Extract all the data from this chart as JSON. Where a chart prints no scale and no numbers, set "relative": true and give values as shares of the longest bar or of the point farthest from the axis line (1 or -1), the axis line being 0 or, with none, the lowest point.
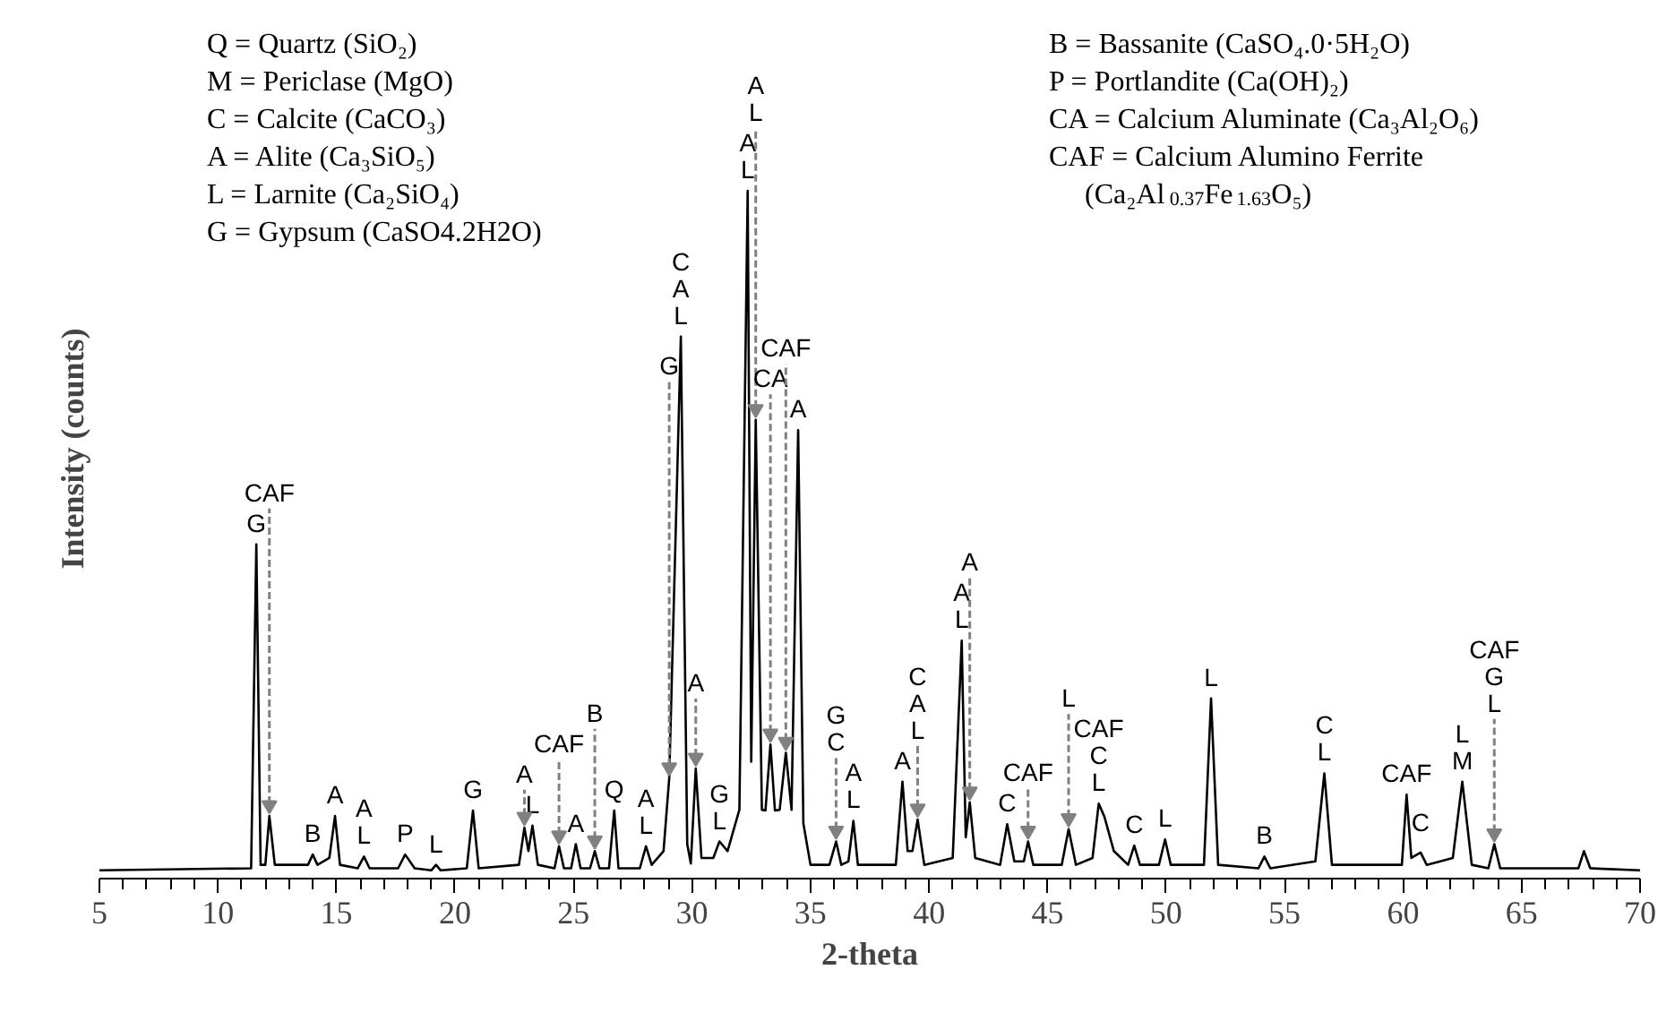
{
  "chart_data": {
    "type": "line",
    "relative": true,
    "xlabel": "2-theta",
    "ylabel": "Intensity (counts)",
    "xlim": [
      5,
      70
    ],
    "xticks": [
      5,
      10,
      15,
      20,
      25,
      30,
      35,
      40,
      45,
      50,
      55,
      60,
      65,
      70
    ],
    "x": [
      5.0,
      11.4,
      11.62,
      11.8,
      12.0,
      12.17,
      12.4,
      13.8,
      14.0,
      14.2,
      14.7,
      14.94,
      15.15,
      15.9,
      16.16,
      16.4,
      17.6,
      17.9,
      18.3,
      19.0,
      19.2,
      19.4,
      20.5,
      20.76,
      21.0,
      22.7,
      22.93,
      23.1,
      23.27,
      23.5,
      24.2,
      24.39,
      24.6,
      24.9,
      25.1,
      25.3,
      25.7,
      25.9,
      26.1,
      26.5,
      26.72,
      26.9,
      27.8,
      28.06,
      28.3,
      28.8,
      29.04,
      29.53,
      29.8,
      29.95,
      30.16,
      30.4,
      30.9,
      31.16,
      31.5,
      32.0,
      32.35,
      32.5,
      32.69,
      32.95,
      33.1,
      33.31,
      33.5,
      33.7,
      33.96,
      34.2,
      34.48,
      34.7,
      35.0,
      35.8,
      36.08,
      36.3,
      36.6,
      36.81,
      37.0,
      38.6,
      38.88,
      39.1,
      39.3,
      39.52,
      39.8,
      41.0,
      41.38,
      41.55,
      41.72,
      41.95,
      43.0,
      43.3,
      43.6,
      44.0,
      44.18,
      44.4,
      45.6,
      45.89,
      46.2,
      46.9,
      47.16,
      47.4,
      47.8,
      48.4,
      48.66,
      48.9,
      49.7,
      49.96,
      50.2,
      51.6,
      51.9,
      52.2,
      53.9,
      54.15,
      54.4,
      56.3,
      56.68,
      57.0,
      59.95,
      60.15,
      60.35,
      60.74,
      61.0,
      62.1,
      62.5,
      62.9,
      63.6,
      63.85,
      64.1,
      67.4,
      67.63,
      67.9,
      70.0
    ],
    "series": [
      {
        "color": "#000000",
        "values": [
          0.012,
          0.015,
          0.486,
          0.02,
          0.02,
          0.091,
          0.02,
          0.02,
          0.035,
          0.02,
          0.03,
          0.091,
          0.02,
          0.015,
          0.032,
          0.015,
          0.015,
          0.035,
          0.015,
          0.012,
          0.02,
          0.012,
          0.015,
          0.099,
          0.015,
          0.02,
          0.074,
          0.04,
          0.077,
          0.02,
          0.015,
          0.047,
          0.015,
          0.015,
          0.05,
          0.015,
          0.015,
          0.04,
          0.015,
          0.015,
          0.099,
          0.015,
          0.015,
          0.047,
          0.02,
          0.04,
          0.146,
          0.788,
          0.05,
          0.022,
          0.16,
          0.03,
          0.03,
          0.054,
          0.04,
          0.1,
          1.0,
          0.17,
          0.667,
          0.1,
          0.099,
          0.195,
          0.099,
          0.1,
          0.183,
          0.1,
          0.652,
          0.08,
          0.02,
          0.02,
          0.054,
          0.02,
          0.025,
          0.084,
          0.02,
          0.02,
          0.141,
          0.04,
          0.04,
          0.086,
          0.02,
          0.03,
          0.346,
          0.06,
          0.111,
          0.03,
          0.02,
          0.079,
          0.025,
          0.025,
          0.054,
          0.02,
          0.02,
          0.072,
          0.02,
          0.03,
          0.109,
          0.09,
          0.04,
          0.02,
          0.048,
          0.02,
          0.02,
          0.057,
          0.02,
          0.02,
          0.262,
          0.02,
          0.015,
          0.032,
          0.015,
          0.025,
          0.153,
          0.02,
          0.02,
          0.122,
          0.03,
          0.038,
          0.02,
          0.03,
          0.141,
          0.02,
          0.015,
          0.05,
          0.015,
          0.015,
          0.04,
          0.015,
          0.012
        ]
      }
    ],
    "annotations": [
      "Q = Quartz (SiO₂)",
      "M = Periclase (MgO)",
      "C = Calcite (CaCO₃)",
      "A = Alite (Ca₃SiO₅)",
      "L = Larnite (Ca₂SiO₄)",
      "G = Gypsum (CaSO4.2H2O)",
      "B = Bassanite (CaSO₄.0·5H₂O)",
      "P = Portlandite (Ca(OH)₂)",
      "CA = Calcium Aluminate (Ca₃Al₂O₆)",
      "CAF = Calcium Alumino Ferrite\n(Ca₂Al$_{0.37}$Fe$_{1.63}$O₅)",
      {
        "text": "G",
        "x": 11.62,
        "y": 0.486
      },
      {
        "text": "CAF",
        "x": 12.17,
        "y": 0.091
      },
      {
        "text": "B",
        "x": 14.0,
        "y": 0.035
      },
      {
        "text": "A",
        "x": 14.94,
        "y": 0.091
      },
      {
        "text": "A\nL",
        "x": 16.16,
        "y": 0.032
      },
      {
        "text": "P",
        "x": 17.9,
        "y": 0.035
      },
      {
        "text": "L",
        "x": 19.2,
        "y": 0.02
      },
      {
        "text": "G",
        "x": 20.76,
        "y": 0.099
      },
      {
        "text": "A",
        "x": 22.93,
        "y": 0.074
      },
      {
        "text": "L",
        "x": 23.27,
        "y": 0.077
      },
      {
        "text": "CAF",
        "x": 24.39,
        "y": 0.047
      },
      {
        "text": "A",
        "x": 25.1,
        "y": 0.05
      },
      {
        "text": "B",
        "x": 25.9,
        "y": 0.04
      },
      {
        "text": "Q",
        "x": 26.72,
        "y": 0.099
      },
      {
        "text": "A\nL",
        "x": 28.06,
        "y": 0.047
      },
      {
        "text": "G",
        "x": 29.04,
        "y": 0.146
      },
      {
        "text": "C\nA\nL",
        "x": 29.53,
        "y": 0.788
      },
      {
        "text": "A",
        "x": 30.16,
        "y": 0.16
      },
      {
        "text": "G\nL",
        "x": 31.16,
        "y": 0.054
      },
      {
        "text": "A\nL",
        "x": 32.35,
        "y": 1.0
      },
      {
        "text": "A\nL",
        "x": 32.69,
        "y": 0.667
      },
      {
        "text": "CA",
        "x": 33.31,
        "y": 0.195
      },
      {
        "text": "CAF",
        "x": 33.96,
        "y": 0.183
      },
      {
        "text": "A",
        "x": 34.48,
        "y": 0.652
      },
      {
        "text": "G\nC",
        "x": 36.08,
        "y": 0.054
      },
      {
        "text": "A\nL",
        "x": 36.81,
        "y": 0.084
      },
      {
        "text": "A",
        "x": 38.88,
        "y": 0.141
      },
      {
        "text": "C\nA\nL",
        "x": 39.52,
        "y": 0.086
      },
      {
        "text": "A\nL",
        "x": 41.38,
        "y": 0.346
      },
      {
        "text": "A",
        "x": 41.72,
        "y": 0.111
      },
      {
        "text": "C",
        "x": 43.3,
        "y": 0.079
      },
      {
        "text": "CAF",
        "x": 44.18,
        "y": 0.054
      },
      {
        "text": "L",
        "x": 45.89,
        "y": 0.072
      },
      {
        "text": "CAF\nC\nL",
        "x": 47.16,
        "y": 0.109
      },
      {
        "text": "C",
        "x": 48.66,
        "y": 0.048
      },
      {
        "text": "L",
        "x": 49.96,
        "y": 0.057
      },
      {
        "text": "L",
        "x": 51.9,
        "y": 0.262
      },
      {
        "text": "B",
        "x": 54.15,
        "y": 0.032
      },
      {
        "text": "C\nL",
        "x": 56.68,
        "y": 0.153
      },
      {
        "text": "CAF",
        "x": 60.15,
        "y": 0.122
      },
      {
        "text": "C",
        "x": 60.74,
        "y": 0.038
      },
      {
        "text": "L\nM",
        "x": 62.5,
        "y": 0.141
      },
      {
        "text": "CAF\nG\nL",
        "x": 63.85,
        "y": 0.05
      }
    ]
  }
}
